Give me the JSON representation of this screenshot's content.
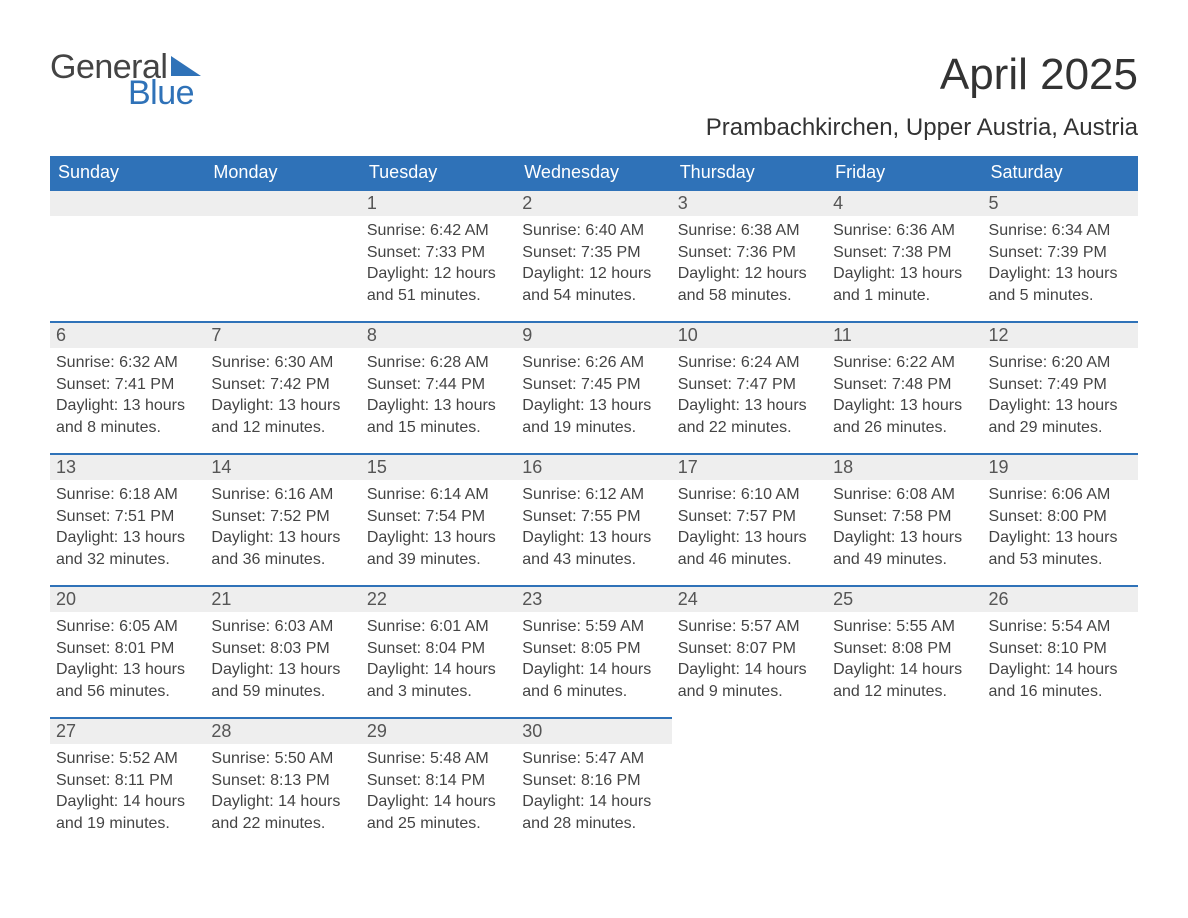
{
  "brand": {
    "part1": "General",
    "part2": "Blue",
    "tri_color": "#2f72b8"
  },
  "title": "April 2025",
  "location": "Prambachkirchen, Upper Austria, Austria",
  "theme": {
    "header_bg": "#2f72b8",
    "header_fg": "#ffffff",
    "daybar_bg": "#eeeeee",
    "daybar_border": "#2f72b8",
    "text": "#444444",
    "page_bg": "#ffffff",
    "title_fontsize": 44,
    "location_fontsize": 24,
    "dayhdr_fontsize": 18,
    "body_fontsize": 16
  },
  "day_headers": [
    "Sunday",
    "Monday",
    "Tuesday",
    "Wednesday",
    "Thursday",
    "Friday",
    "Saturday"
  ],
  "weeks": [
    [
      {
        "n": "",
        "sr": "",
        "ss": "",
        "dl": ""
      },
      {
        "n": "",
        "sr": "",
        "ss": "",
        "dl": ""
      },
      {
        "n": "1",
        "sr": "Sunrise: 6:42 AM",
        "ss": "Sunset: 7:33 PM",
        "dl": "Daylight: 12 hours and 51 minutes."
      },
      {
        "n": "2",
        "sr": "Sunrise: 6:40 AM",
        "ss": "Sunset: 7:35 PM",
        "dl": "Daylight: 12 hours and 54 minutes."
      },
      {
        "n": "3",
        "sr": "Sunrise: 6:38 AM",
        "ss": "Sunset: 7:36 PM",
        "dl": "Daylight: 12 hours and 58 minutes."
      },
      {
        "n": "4",
        "sr": "Sunrise: 6:36 AM",
        "ss": "Sunset: 7:38 PM",
        "dl": "Daylight: 13 hours and 1 minute."
      },
      {
        "n": "5",
        "sr": "Sunrise: 6:34 AM",
        "ss": "Sunset: 7:39 PM",
        "dl": "Daylight: 13 hours and 5 minutes."
      }
    ],
    [
      {
        "n": "6",
        "sr": "Sunrise: 6:32 AM",
        "ss": "Sunset: 7:41 PM",
        "dl": "Daylight: 13 hours and 8 minutes."
      },
      {
        "n": "7",
        "sr": "Sunrise: 6:30 AM",
        "ss": "Sunset: 7:42 PM",
        "dl": "Daylight: 13 hours and 12 minutes."
      },
      {
        "n": "8",
        "sr": "Sunrise: 6:28 AM",
        "ss": "Sunset: 7:44 PM",
        "dl": "Daylight: 13 hours and 15 minutes."
      },
      {
        "n": "9",
        "sr": "Sunrise: 6:26 AM",
        "ss": "Sunset: 7:45 PM",
        "dl": "Daylight: 13 hours and 19 minutes."
      },
      {
        "n": "10",
        "sr": "Sunrise: 6:24 AM",
        "ss": "Sunset: 7:47 PM",
        "dl": "Daylight: 13 hours and 22 minutes."
      },
      {
        "n": "11",
        "sr": "Sunrise: 6:22 AM",
        "ss": "Sunset: 7:48 PM",
        "dl": "Daylight: 13 hours and 26 minutes."
      },
      {
        "n": "12",
        "sr": "Sunrise: 6:20 AM",
        "ss": "Sunset: 7:49 PM",
        "dl": "Daylight: 13 hours and 29 minutes."
      }
    ],
    [
      {
        "n": "13",
        "sr": "Sunrise: 6:18 AM",
        "ss": "Sunset: 7:51 PM",
        "dl": "Daylight: 13 hours and 32 minutes."
      },
      {
        "n": "14",
        "sr": "Sunrise: 6:16 AM",
        "ss": "Sunset: 7:52 PM",
        "dl": "Daylight: 13 hours and 36 minutes."
      },
      {
        "n": "15",
        "sr": "Sunrise: 6:14 AM",
        "ss": "Sunset: 7:54 PM",
        "dl": "Daylight: 13 hours and 39 minutes."
      },
      {
        "n": "16",
        "sr": "Sunrise: 6:12 AM",
        "ss": "Sunset: 7:55 PM",
        "dl": "Daylight: 13 hours and 43 minutes."
      },
      {
        "n": "17",
        "sr": "Sunrise: 6:10 AM",
        "ss": "Sunset: 7:57 PM",
        "dl": "Daylight: 13 hours and 46 minutes."
      },
      {
        "n": "18",
        "sr": "Sunrise: 6:08 AM",
        "ss": "Sunset: 7:58 PM",
        "dl": "Daylight: 13 hours and 49 minutes."
      },
      {
        "n": "19",
        "sr": "Sunrise: 6:06 AM",
        "ss": "Sunset: 8:00 PM",
        "dl": "Daylight: 13 hours and 53 minutes."
      }
    ],
    [
      {
        "n": "20",
        "sr": "Sunrise: 6:05 AM",
        "ss": "Sunset: 8:01 PM",
        "dl": "Daylight: 13 hours and 56 minutes."
      },
      {
        "n": "21",
        "sr": "Sunrise: 6:03 AM",
        "ss": "Sunset: 8:03 PM",
        "dl": "Daylight: 13 hours and 59 minutes."
      },
      {
        "n": "22",
        "sr": "Sunrise: 6:01 AM",
        "ss": "Sunset: 8:04 PM",
        "dl": "Daylight: 14 hours and 3 minutes."
      },
      {
        "n": "23",
        "sr": "Sunrise: 5:59 AM",
        "ss": "Sunset: 8:05 PM",
        "dl": "Daylight: 14 hours and 6 minutes."
      },
      {
        "n": "24",
        "sr": "Sunrise: 5:57 AM",
        "ss": "Sunset: 8:07 PM",
        "dl": "Daylight: 14 hours and 9 minutes."
      },
      {
        "n": "25",
        "sr": "Sunrise: 5:55 AM",
        "ss": "Sunset: 8:08 PM",
        "dl": "Daylight: 14 hours and 12 minutes."
      },
      {
        "n": "26",
        "sr": "Sunrise: 5:54 AM",
        "ss": "Sunset: 8:10 PM",
        "dl": "Daylight: 14 hours and 16 minutes."
      }
    ],
    [
      {
        "n": "27",
        "sr": "Sunrise: 5:52 AM",
        "ss": "Sunset: 8:11 PM",
        "dl": "Daylight: 14 hours and 19 minutes."
      },
      {
        "n": "28",
        "sr": "Sunrise: 5:50 AM",
        "ss": "Sunset: 8:13 PM",
        "dl": "Daylight: 14 hours and 22 minutes."
      },
      {
        "n": "29",
        "sr": "Sunrise: 5:48 AM",
        "ss": "Sunset: 8:14 PM",
        "dl": "Daylight: 14 hours and 25 minutes."
      },
      {
        "n": "30",
        "sr": "Sunrise: 5:47 AM",
        "ss": "Sunset: 8:16 PM",
        "dl": "Daylight: 14 hours and 28 minutes."
      },
      {
        "n": "",
        "sr": "",
        "ss": "",
        "dl": ""
      },
      {
        "n": "",
        "sr": "",
        "ss": "",
        "dl": ""
      },
      {
        "n": "",
        "sr": "",
        "ss": "",
        "dl": ""
      }
    ]
  ]
}
